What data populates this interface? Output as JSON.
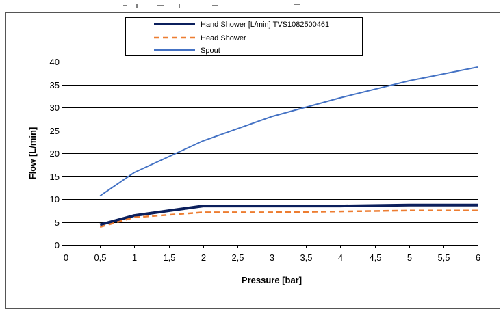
{
  "chart_data": {
    "type": "line",
    "xlabel": "Pressure [bar]",
    "ylabel": "Flow [L/min]",
    "xlim": [
      0,
      6
    ],
    "ylim": [
      0,
      40
    ],
    "x_ticks": [
      "0",
      "0,5",
      "1",
      "1,5",
      "2",
      "2,5",
      "3",
      "3,5",
      "4",
      "4,5",
      "5",
      "5,5",
      "6"
    ],
    "y_ticks": [
      "0",
      "5",
      "10",
      "15",
      "20",
      "25",
      "30",
      "35",
      "40"
    ],
    "grid": "horizontal",
    "legend_position": "top-center",
    "x": [
      0.5,
      1,
      2,
      3,
      4,
      5,
      6
    ],
    "series": [
      {
        "name": "Hand Shower [L/min] TVS1082500461",
        "values": [
          4.4,
          6.4,
          8.5,
          8.5,
          8.5,
          8.7,
          8.7
        ],
        "color": "#0b1f5c",
        "style": "solid-thick"
      },
      {
        "name": "Head Shower",
        "values": [
          3.9,
          6.0,
          7.1,
          7.1,
          7.3,
          7.5,
          7.5
        ],
        "color": "#ed7d31",
        "style": "dashed"
      },
      {
        "name": "Spout",
        "values": [
          10.7,
          15.8,
          22.7,
          28.0,
          32.1,
          35.8,
          38.8
        ],
        "color": "#4472c4",
        "style": "solid-thin"
      }
    ]
  }
}
